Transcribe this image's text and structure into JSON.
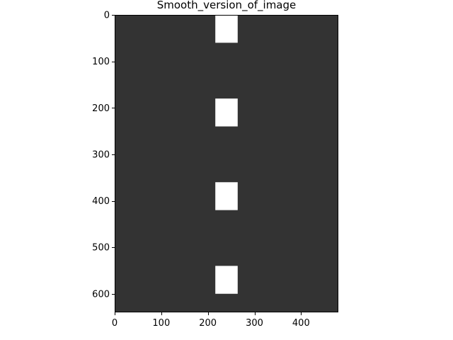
{
  "chart_data": {
    "type": "heatmap",
    "title": "Smooth_version_of_image",
    "xlabel": "",
    "ylabel": "",
    "image_width": 480,
    "image_height": 640,
    "xlim": [
      0,
      480
    ],
    "ylim": [
      640,
      0
    ],
    "y_axis_inverted": true,
    "grid": false,
    "background_value_color": "#333333",
    "highlight_value_color": "#ffffff",
    "x_ticks": [
      0,
      100,
      200,
      300,
      400
    ],
    "x_tick_labels": [
      "0",
      "100",
      "200",
      "300",
      "400"
    ],
    "y_ticks": [
      0,
      100,
      200,
      300,
      400,
      500,
      600
    ],
    "y_tick_labels": [
      "0",
      "100",
      "200",
      "300",
      "400",
      "500",
      "600"
    ],
    "bright_regions": [
      {
        "x_range": [
          216,
          264
        ],
        "y_range": [
          0,
          60
        ]
      },
      {
        "x_range": [
          216,
          264
        ],
        "y_range": [
          180,
          240
        ]
      },
      {
        "x_range": [
          216,
          264
        ],
        "y_range": [
          360,
          420
        ]
      },
      {
        "x_range": [
          216,
          264
        ],
        "y_range": [
          540,
          600
        ]
      }
    ]
  }
}
